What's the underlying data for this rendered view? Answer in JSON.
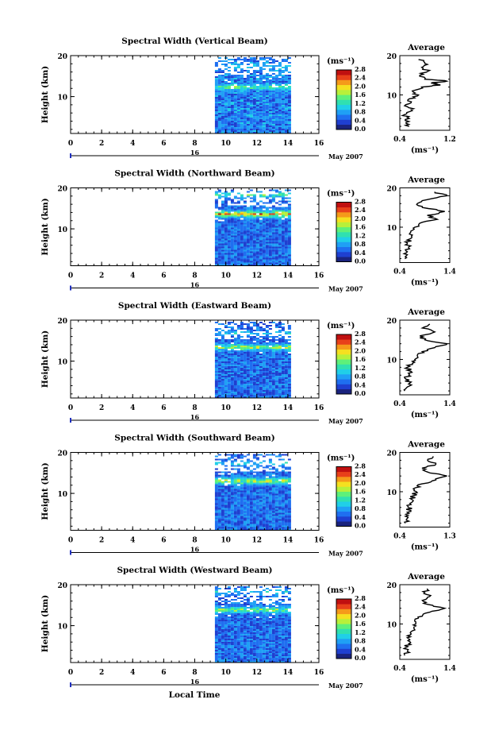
{
  "colorbar": {
    "unit_label": "(ms⁻¹)",
    "ticks": [
      "0.0",
      "0.4",
      "0.8",
      "1.2",
      "1.6",
      "2.0",
      "2.4",
      "2.8"
    ],
    "range": [
      0.0,
      2.8
    ],
    "colors": [
      "#1a237e",
      "#1f3fd0",
      "#1f6ff0",
      "#1fa0f5",
      "#20cfe8",
      "#30e0b0",
      "#5ef07a",
      "#b8f03a",
      "#f5e020",
      "#f59a1a",
      "#e8401a",
      "#c01010"
    ]
  },
  "footer": {
    "xlabel": "Local Time"
  },
  "chart_data": [
    {
      "type": "heatmap",
      "title": "Spectral Width (Vertical Beam)",
      "ylabel": "Height (km)",
      "xlabel": "Local Time",
      "xticks": [
        "0",
        "2",
        "4",
        "6",
        "8",
        "10",
        "12",
        "14",
        "16"
      ],
      "yticks": [
        "10",
        "20"
      ],
      "xlim": [
        0,
        16
      ],
      "ylim": [
        1,
        20
      ],
      "date_label": "16",
      "month_label": "May 2007",
      "data_time_range": [
        9.3,
        14.1
      ],
      "typical_value": 0.7,
      "high_layers": [
        {
          "height": 12.5,
          "value": 1.7
        },
        {
          "height": 17.5,
          "value": 1.2
        }
      ],
      "profile": {
        "title": "Average",
        "xlabel": "(ms⁻¹)",
        "xticks": [
          "0.4",
          "1.2"
        ],
        "xlim": [
          0.4,
          1.2
        ],
        "yticks": [
          "10",
          "20"
        ],
        "ylim": [
          1,
          20
        ],
        "height": [
          2,
          3,
          4,
          5,
          6,
          7,
          8,
          9,
          10,
          11,
          12,
          12.5,
          13,
          13.5,
          14,
          15,
          16,
          17,
          18,
          19
        ],
        "value": [
          0.55,
          0.5,
          0.55,
          0.48,
          0.6,
          0.52,
          0.58,
          0.55,
          0.7,
          0.6,
          0.75,
          1.05,
          0.9,
          1.15,
          0.8,
          0.72,
          0.85,
          0.75,
          0.8,
          0.7
        ]
      }
    },
    {
      "type": "heatmap",
      "title": "Spectral Width (Northward Beam)",
      "ylabel": "Height (km)",
      "xlabel": "Local Time",
      "xticks": [
        "0",
        "2",
        "4",
        "6",
        "8",
        "10",
        "12",
        "14",
        "16"
      ],
      "yticks": [
        "10",
        "20"
      ],
      "xlim": [
        0,
        16
      ],
      "ylim": [
        1,
        20
      ],
      "date_label": "16",
      "month_label": "May 2007",
      "data_time_range": [
        9.3,
        14.1
      ],
      "typical_value": 0.6,
      "high_layers": [
        {
          "height": 13.8,
          "value": 2.4
        },
        {
          "height": 18.5,
          "value": 1.6
        }
      ],
      "profile": {
        "title": "Average",
        "xlabel": "(ms⁻¹)",
        "xticks": [
          "0.4",
          "1.4"
        ],
        "xlim": [
          0.4,
          1.4
        ],
        "yticks": [
          "10",
          "20"
        ],
        "ylim": [
          1,
          20
        ],
        "height": [
          2,
          3,
          4,
          5,
          6,
          7,
          8,
          9,
          10,
          11,
          12,
          13,
          14,
          15,
          16,
          17,
          18,
          19
        ],
        "value": [
          0.5,
          0.55,
          0.52,
          0.58,
          0.55,
          0.6,
          0.65,
          0.62,
          0.7,
          0.8,
          1.15,
          0.95,
          1.3,
          0.85,
          0.75,
          0.95,
          1.35,
          1.1
        ]
      }
    },
    {
      "type": "heatmap",
      "title": "Spectral Width (Eastward Beam)",
      "ylabel": "Height (km)",
      "xlabel": "Local Time",
      "xticks": [
        "0",
        "2",
        "4",
        "6",
        "8",
        "10",
        "12",
        "14",
        "16"
      ],
      "yticks": [
        "10",
        "20"
      ],
      "xlim": [
        0,
        16
      ],
      "ylim": [
        1,
        20
      ],
      "date_label": "16",
      "month_label": "May 2007",
      "data_time_range": [
        9.3,
        14.1
      ],
      "typical_value": 0.6,
      "high_layers": [
        {
          "height": 13.5,
          "value": 2.0
        },
        {
          "height": 17.0,
          "value": 1.2
        }
      ],
      "profile": {
        "title": "Average",
        "xlabel": "(ms⁻¹)",
        "xticks": [
          "0.4",
          "1.4"
        ],
        "xlim": [
          0.4,
          1.4
        ],
        "yticks": [
          "10",
          "20"
        ],
        "ylim": [
          1,
          20
        ],
        "height": [
          2,
          3,
          4,
          5,
          6,
          7,
          8,
          9,
          10,
          11,
          12,
          13,
          14,
          15,
          16,
          17,
          18,
          19
        ],
        "value": [
          0.5,
          0.55,
          0.6,
          0.52,
          0.58,
          0.62,
          0.55,
          0.65,
          0.7,
          0.75,
          0.85,
          1.1,
          1.35,
          0.9,
          0.8,
          1.1,
          0.85,
          1.0
        ]
      }
    },
    {
      "type": "heatmap",
      "title": "Spectral Width (Southward Beam)",
      "ylabel": "Height (km)",
      "xlabel": "Local Time",
      "xticks": [
        "0",
        "2",
        "4",
        "6",
        "8",
        "10",
        "12",
        "14",
        "16"
      ],
      "yticks": [
        "10",
        "20"
      ],
      "xlim": [
        0,
        16
      ],
      "ylim": [
        1,
        20
      ],
      "date_label": "16",
      "month_label": "May 2007",
      "data_time_range": [
        9.3,
        14.1
      ],
      "typical_value": 0.6,
      "high_layers": [
        {
          "height": 13.2,
          "value": 2.0
        },
        {
          "height": 17.5,
          "value": 1.3
        }
      ],
      "profile": {
        "title": "Average",
        "xlabel": "(ms⁻¹)",
        "xticks": [
          "0.4",
          "1.3"
        ],
        "xlim": [
          0.4,
          1.3
        ],
        "yticks": [
          "10",
          "20"
        ],
        "ylim": [
          1,
          20
        ],
        "height": [
          2,
          3,
          4,
          5,
          6,
          7,
          8,
          9,
          10,
          11,
          12,
          13,
          14,
          15,
          16,
          17,
          18,
          19
        ],
        "value": [
          0.5,
          0.52,
          0.55,
          0.6,
          0.55,
          0.58,
          0.62,
          0.65,
          0.7,
          0.68,
          0.8,
          1.05,
          1.25,
          0.9,
          0.8,
          1.05,
          0.9,
          1.0
        ]
      }
    },
    {
      "type": "heatmap",
      "title": "Spectral Width (Westward Beam)",
      "ylabel": "Height (km)",
      "xlabel": "Local Time",
      "xticks": [
        "0",
        "2",
        "4",
        "6",
        "8",
        "10",
        "12",
        "14",
        "16"
      ],
      "yticks": [
        "10",
        "20"
      ],
      "xlim": [
        0,
        16
      ],
      "ylim": [
        1,
        20
      ],
      "date_label": "16",
      "month_label": "May 2007",
      "data_time_range": [
        9.3,
        14.1
      ],
      "typical_value": 0.6,
      "high_layers": [
        {
          "height": 14.0,
          "value": 1.8
        },
        {
          "height": 18.5,
          "value": 1.2
        }
      ],
      "profile": {
        "title": "Average",
        "xlabel": "(ms⁻¹)",
        "xticks": [
          "0.4",
          "1.4"
        ],
        "xlim": [
          0.4,
          1.4
        ],
        "yticks": [
          "10",
          "20"
        ],
        "ylim": [
          1,
          20
        ],
        "height": [
          2,
          3,
          4,
          5,
          6,
          7,
          8,
          9,
          10,
          11,
          12,
          13,
          14,
          15,
          16,
          17,
          18,
          19
        ],
        "value": [
          0.5,
          0.55,
          0.52,
          0.58,
          0.6,
          0.55,
          0.62,
          0.68,
          0.72,
          0.7,
          0.85,
          1.0,
          1.3,
          0.95,
          0.85,
          1.0,
          0.9,
          0.95
        ]
      }
    }
  ]
}
